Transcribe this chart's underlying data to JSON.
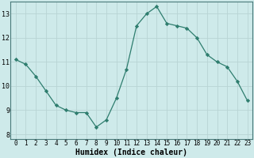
{
  "x": [
    0,
    1,
    2,
    3,
    4,
    5,
    6,
    7,
    8,
    9,
    10,
    11,
    12,
    13,
    14,
    15,
    16,
    17,
    18,
    19,
    20,
    21,
    22,
    23
  ],
  "y": [
    11.1,
    10.9,
    10.4,
    9.8,
    9.2,
    9.0,
    8.9,
    8.9,
    8.3,
    8.6,
    9.5,
    10.7,
    12.5,
    13.0,
    13.3,
    12.6,
    12.5,
    12.4,
    12.0,
    11.3,
    11.0,
    10.8,
    10.2,
    9.4
  ],
  "line_color": "#2e7d6e",
  "marker": "D",
  "marker_size": 2.2,
  "bg_color": "#ceeaea",
  "grid_color": "#b8d4d4",
  "xlabel": "Humidex (Indice chaleur)",
  "ylim": [
    7.8,
    13.5
  ],
  "xlim": [
    -0.5,
    23.5
  ],
  "yticks": [
    8,
    9,
    10,
    11,
    12,
    13
  ],
  "xticks": [
    0,
    1,
    2,
    3,
    4,
    5,
    6,
    7,
    8,
    9,
    10,
    11,
    12,
    13,
    14,
    15,
    16,
    17,
    18,
    19,
    20,
    21,
    22,
    23
  ],
  "tick_fontsize": 5.5,
  "ylabel_fontsize": 6.0,
  "xlabel_fontsize": 7.0
}
